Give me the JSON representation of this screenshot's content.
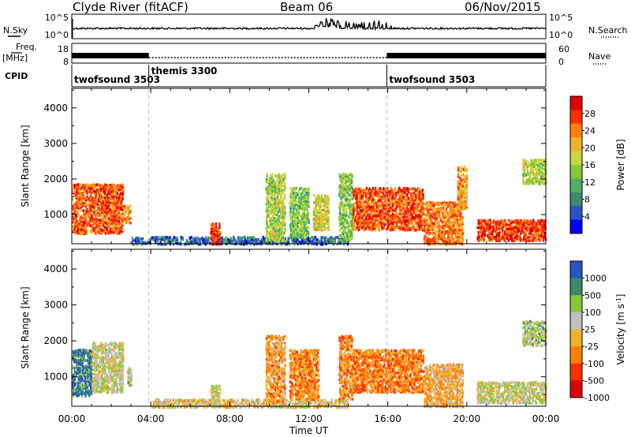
{
  "header": {
    "site": "Clyde River (fitACF)",
    "beam": "Beam 06",
    "date": "06/Nov/2015"
  },
  "strip_labels": {
    "nsky": "N.Sky",
    "nsky_ticks": [
      "10^5",
      "10^0"
    ],
    "nsearch": "N.Search",
    "nsearch_ticks": [
      "10^5",
      "10^0"
    ],
    "freq": "Freq.",
    "freq_unit": "[MHz]",
    "freq_ticks": [
      "18",
      "8"
    ],
    "nave": "Nave",
    "nave_ticks": [
      "60",
      "0"
    ],
    "cpid": "CPID"
  },
  "cpid_segments": [
    {
      "name": "twofsound",
      "id": "3503",
      "start_h": 0.0,
      "end_h": 3.9
    },
    {
      "name": "themis",
      "id": "3300",
      "start_h": 3.9,
      "end_h": 15.95
    },
    {
      "name": "twofsound",
      "id": "3503",
      "start_h": 15.95,
      "end_h": 24.0
    }
  ],
  "chart_data": [
    {
      "type": "heatmap",
      "name": "power",
      "ylabel": "Slant Range [km]",
      "xlabel": "Time UT",
      "x_range_h": [
        0,
        24
      ],
      "ylim": [
        180,
        4550
      ],
      "yticks": [
        1000,
        2000,
        3000,
        4000
      ],
      "xticks": [
        "00:00",
        "04:00",
        "08:00",
        "12:00",
        "16:00",
        "20:00",
        "00:00"
      ],
      "colorbar": {
        "label": "Power [dB]",
        "ticks": [
          "28",
          "24",
          "20",
          "16",
          "12",
          "8",
          "4"
        ],
        "range": [
          0,
          32
        ],
        "colors": [
          "#0000ff",
          "#2a55c0",
          "#3a8a70",
          "#4fb060",
          "#86c83a",
          "#c8d640",
          "#f0b030",
          "#ff8000",
          "#ff3000",
          "#e00000"
        ]
      },
      "regions": [
        {
          "t": [
            0.0,
            2.6
          ],
          "r": [
            500,
            1900
          ],
          "v": 26
        },
        {
          "t": [
            2.6,
            3.0
          ],
          "r": [
            800,
            1300
          ],
          "v": 22
        },
        {
          "t": [
            3.0,
            4.0
          ],
          "r": [
            200,
            400
          ],
          "v": 6
        },
        {
          "t": [
            4.0,
            14.0
          ],
          "r": [
            200,
            420
          ],
          "v": 6
        },
        {
          "t": [
            7.0,
            7.5
          ],
          "r": [
            200,
            800
          ],
          "v": 27
        },
        {
          "t": [
            9.8,
            10.8
          ],
          "r": [
            300,
            2200
          ],
          "v": 16
        },
        {
          "t": [
            11.0,
            12.0
          ],
          "r": [
            400,
            1800
          ],
          "v": 14
        },
        {
          "t": [
            12.2,
            13.0
          ],
          "r": [
            600,
            1600
          ],
          "v": 18
        },
        {
          "t": [
            13.5,
            14.2
          ],
          "r": [
            300,
            2200
          ],
          "v": 14
        },
        {
          "t": [
            14.2,
            17.8
          ],
          "r": [
            600,
            1800
          ],
          "v": 26
        },
        {
          "t": [
            17.8,
            19.8
          ],
          "r": [
            200,
            1400
          ],
          "v": 24
        },
        {
          "t": [
            19.5,
            20.0
          ],
          "r": [
            1200,
            2400
          ],
          "v": 22
        },
        {
          "t": [
            20.5,
            24.0
          ],
          "r": [
            300,
            900
          ],
          "v": 28
        },
        {
          "t": [
            22.8,
            24.0
          ],
          "r": [
            1900,
            2600
          ],
          "v": 16
        }
      ]
    },
    {
      "type": "heatmap",
      "name": "velocity",
      "ylabel": "Slant Range [km]",
      "xlabel": "Time UT",
      "x_range_h": [
        0,
        24
      ],
      "ylim": [
        180,
        4550
      ],
      "yticks": [
        1000,
        2000,
        3000,
        4000
      ],
      "xticks": [
        "00:00",
        "04:00",
        "08:00",
        "12:00",
        "16:00",
        "20:00",
        "00:00"
      ],
      "colorbar": {
        "label": "Velocity [m s-1]",
        "ticks": [
          "1000",
          "500",
          "100",
          "25",
          "-25",
          "-100",
          "-500",
          "-1000"
        ],
        "range": [
          -1200,
          1200
        ],
        "colors": [
          "#e00000",
          "#ff3000",
          "#ff8000",
          "#f0b030",
          "#c0c0c0",
          "#86c83a",
          "#3a8a70",
          "#2a55c0"
        ]
      },
      "regions": [
        {
          "t": [
            0.0,
            1.0
          ],
          "r": [
            500,
            1800
          ],
          "v": 900
        },
        {
          "t": [
            1.0,
            2.6
          ],
          "r": [
            600,
            2000
          ],
          "v": 150
        },
        {
          "t": [
            2.8,
            3.0
          ],
          "r": [
            800,
            1300
          ],
          "v": 300
        },
        {
          "t": [
            4.0,
            14.0
          ],
          "r": [
            180,
            420
          ],
          "v": 0
        },
        {
          "t": [
            7.0,
            7.5
          ],
          "r": [
            200,
            800
          ],
          "v": 120
        },
        {
          "t": [
            9.8,
            10.8
          ],
          "r": [
            300,
            2200
          ],
          "v": -300
        },
        {
          "t": [
            11.0,
            12.5
          ],
          "r": [
            400,
            1800
          ],
          "v": -400
        },
        {
          "t": [
            13.5,
            14.2
          ],
          "r": [
            400,
            2200
          ],
          "v": -350
        },
        {
          "t": [
            14.2,
            17.8
          ],
          "r": [
            600,
            1800
          ],
          "v": -450
        },
        {
          "t": [
            17.8,
            19.8
          ],
          "r": [
            200,
            1400
          ],
          "v": -200
        },
        {
          "t": [
            20.5,
            24.0
          ],
          "r": [
            300,
            900
          ],
          "v": 150
        },
        {
          "t": [
            22.8,
            24.0
          ],
          "r": [
            1900,
            2600
          ],
          "v": 300
        }
      ]
    }
  ]
}
